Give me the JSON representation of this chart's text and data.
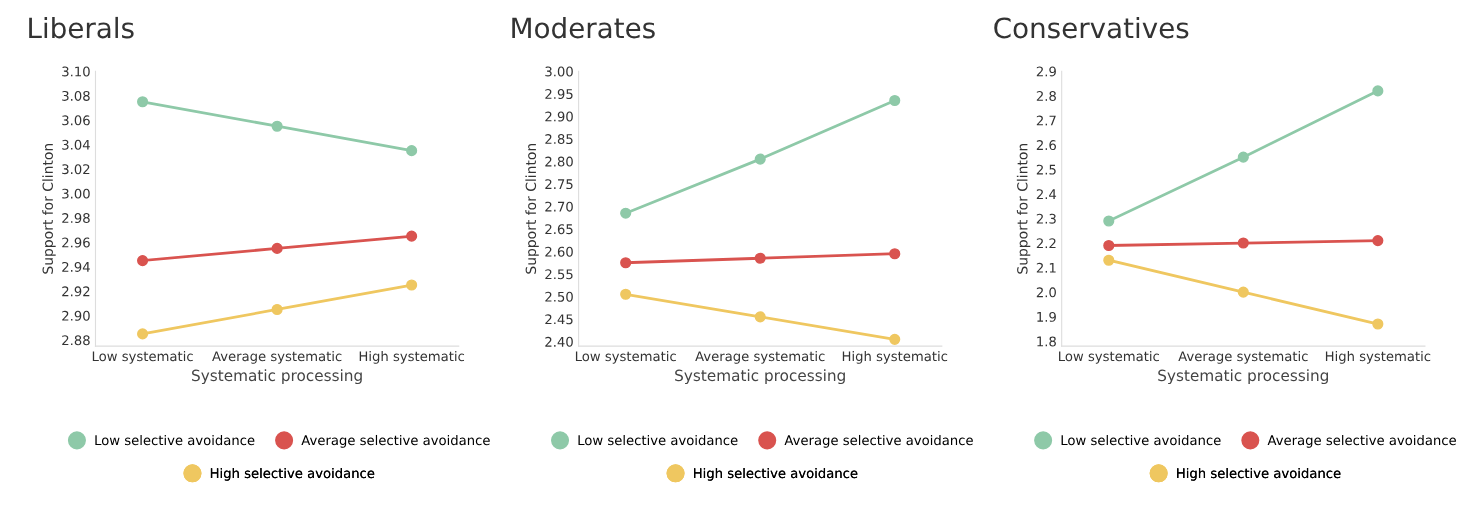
{
  "chart_data": [
    {
      "type": "line",
      "title": "Liberals",
      "xlabel": "Systematic processing",
      "ylabel": "Support for Clinton",
      "categories": [
        "Low systematic",
        "Average systematic",
        "High systematic"
      ],
      "ylim": [
        2.875,
        3.1
      ],
      "yticks": [
        2.88,
        {
          "value": 2.9,
          "label": "2.90"
        },
        2.92,
        2.94,
        2.96,
        2.98,
        {
          "value": 3.0,
          "label": "3.00"
        },
        3.02,
        3.04,
        3.06,
        3.08,
        {
          "value": 3.1,
          "label": "3.10"
        }
      ],
      "grid": false,
      "legend": "bottom",
      "marker": "circle",
      "line_style": "solid",
      "series": [
        {
          "name": "Low selective avoidance",
          "color": "#8ec9a8",
          "values": [
            3.075,
            3.055,
            3.035
          ]
        },
        {
          "name": "Average selective avoidance",
          "color": "#d9534f",
          "values": [
            2.945,
            2.955,
            2.965
          ]
        },
        {
          "name": "High selective avoidance",
          "color": "#efc760",
          "values": [
            2.885,
            2.905,
            2.925
          ]
        }
      ]
    },
    {
      "type": "line",
      "title": "Moderates",
      "xlabel": "Systematic processing",
      "ylabel": "Support for Clinton",
      "categories": [
        "Low systematic",
        "Average systematic",
        "High systematic"
      ],
      "ylim": [
        2.39,
        3.0
      ],
      "yticks": [
        {
          "value": 2.4,
          "label": "2.40"
        },
        2.45,
        {
          "value": 2.5,
          "label": "2.50"
        },
        2.55,
        {
          "value": 2.6,
          "label": "2.60"
        },
        2.65,
        {
          "value": 2.7,
          "label": "2.70"
        },
        2.75,
        {
          "value": 2.8,
          "label": "2.80"
        },
        2.85,
        {
          "value": 2.9,
          "label": "2.90"
        },
        2.95,
        {
          "value": 3.0,
          "label": "3.00"
        }
      ],
      "grid": false,
      "legend": "bottom",
      "marker": "circle",
      "line_style": "solid",
      "series": [
        {
          "name": "Low selective avoidance",
          "color": "#8ec9a8",
          "values": [
            2.685,
            2.805,
            2.935
          ]
        },
        {
          "name": "Average selective avoidance",
          "color": "#d9534f",
          "values": [
            2.575,
            2.585,
            2.595
          ]
        },
        {
          "name": "High selective avoidance",
          "color": "#efc760",
          "values": [
            2.505,
            2.455,
            2.405
          ]
        }
      ]
    },
    {
      "type": "line",
      "title": "Conservatives",
      "xlabel": "Systematic processing",
      "ylabel": "Support for Clinton",
      "categories": [
        "Low systematic",
        "Average systematic",
        "High systematic"
      ],
      "ylim": [
        1.78,
        2.9
      ],
      "yticks": [
        1.8,
        1.9,
        {
          "value": 2.0,
          "label": "2.0"
        },
        2.1,
        2.2,
        2.3,
        2.4,
        2.5,
        2.6,
        2.7,
        2.8,
        2.9
      ],
      "grid": false,
      "legend": "bottom",
      "marker": "circle",
      "line_style": "solid",
      "series": [
        {
          "name": "Low selective avoidance",
          "color": "#8ec9a8",
          "values": [
            2.29,
            2.55,
            2.82
          ]
        },
        {
          "name": "Average selective avoidance",
          "color": "#d9534f",
          "values": [
            2.19,
            2.2,
            2.21
          ]
        },
        {
          "name": "High selective avoidance",
          "color": "#efc760",
          "values": [
            2.13,
            2.0,
            1.87
          ]
        }
      ]
    }
  ]
}
